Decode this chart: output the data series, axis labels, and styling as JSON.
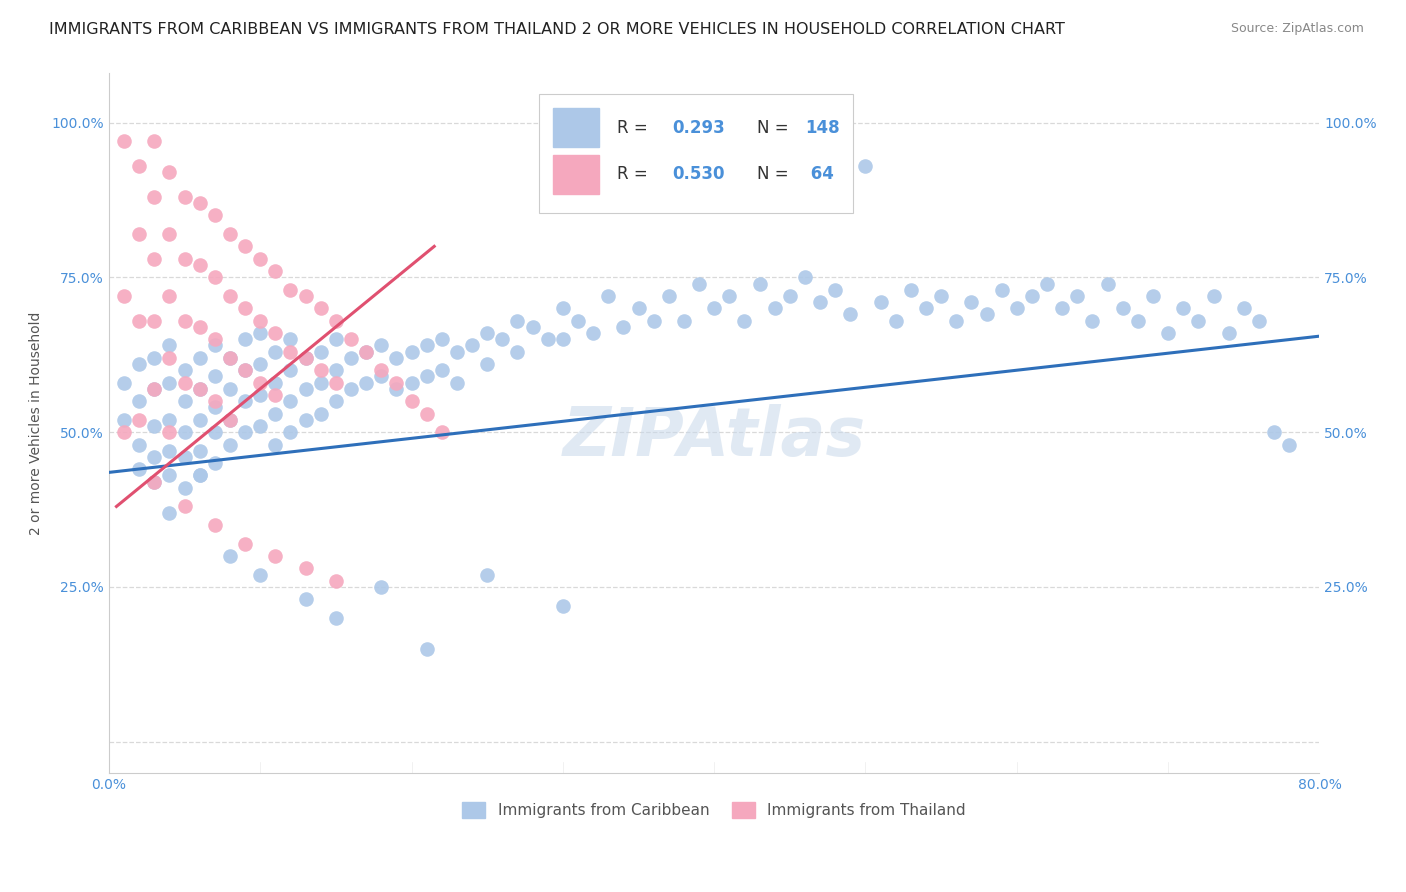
{
  "title": "IMMIGRANTS FROM CARIBBEAN VS IMMIGRANTS FROM THAILAND 2 OR MORE VEHICLES IN HOUSEHOLD CORRELATION CHART",
  "source": "Source: ZipAtlas.com",
  "ylabel": "2 or more Vehicles in Household",
  "xlim": [
    0.0,
    0.8
  ],
  "ylim": [
    -0.05,
    1.08
  ],
  "blue_R": 0.293,
  "blue_N": 148,
  "pink_R": 0.53,
  "pink_N": 64,
  "blue_color": "#adc8e8",
  "blue_line_color": "#2e6fba",
  "pink_color": "#f5a8be",
  "pink_line_color": "#e05070",
  "blue_label": "Immigrants from Caribbean",
  "pink_label": "Immigrants from Thailand",
  "watermark": "ZIPAtlas",
  "title_fontsize": 11.5,
  "axis_label_fontsize": 10,
  "tick_fontsize": 10,
  "blue_scatter_x": [
    0.01,
    0.01,
    0.02,
    0.02,
    0.02,
    0.02,
    0.03,
    0.03,
    0.03,
    0.03,
    0.03,
    0.04,
    0.04,
    0.04,
    0.04,
    0.04,
    0.05,
    0.05,
    0.05,
    0.05,
    0.05,
    0.06,
    0.06,
    0.06,
    0.06,
    0.06,
    0.07,
    0.07,
    0.07,
    0.07,
    0.07,
    0.08,
    0.08,
    0.08,
    0.08,
    0.09,
    0.09,
    0.09,
    0.09,
    0.1,
    0.1,
    0.1,
    0.1,
    0.11,
    0.11,
    0.11,
    0.11,
    0.12,
    0.12,
    0.12,
    0.12,
    0.13,
    0.13,
    0.13,
    0.14,
    0.14,
    0.14,
    0.15,
    0.15,
    0.15,
    0.16,
    0.16,
    0.17,
    0.17,
    0.18,
    0.18,
    0.19,
    0.19,
    0.2,
    0.2,
    0.21,
    0.21,
    0.22,
    0.22,
    0.23,
    0.23,
    0.24,
    0.25,
    0.25,
    0.26,
    0.27,
    0.27,
    0.28,
    0.29,
    0.3,
    0.3,
    0.31,
    0.32,
    0.33,
    0.34,
    0.35,
    0.36,
    0.37,
    0.38,
    0.39,
    0.4,
    0.41,
    0.42,
    0.43,
    0.44,
    0.45,
    0.46,
    0.47,
    0.48,
    0.49,
    0.5,
    0.51,
    0.52,
    0.53,
    0.54,
    0.55,
    0.56,
    0.57,
    0.58,
    0.59,
    0.6,
    0.61,
    0.62,
    0.63,
    0.64,
    0.65,
    0.66,
    0.67,
    0.68,
    0.69,
    0.7,
    0.71,
    0.72,
    0.73,
    0.74,
    0.75,
    0.76,
    0.77,
    0.78,
    0.04,
    0.06,
    0.08,
    0.1,
    0.13,
    0.15,
    0.18,
    0.21,
    0.25,
    0.3
  ],
  "blue_scatter_y": [
    0.58,
    0.52,
    0.61,
    0.55,
    0.48,
    0.44,
    0.62,
    0.57,
    0.51,
    0.46,
    0.42,
    0.64,
    0.58,
    0.52,
    0.47,
    0.43,
    0.6,
    0.55,
    0.5,
    0.46,
    0.41,
    0.62,
    0.57,
    0.52,
    0.47,
    0.43,
    0.64,
    0.59,
    0.54,
    0.5,
    0.45,
    0.62,
    0.57,
    0.52,
    0.48,
    0.65,
    0.6,
    0.55,
    0.5,
    0.66,
    0.61,
    0.56,
    0.51,
    0.63,
    0.58,
    0.53,
    0.48,
    0.65,
    0.6,
    0.55,
    0.5,
    0.62,
    0.57,
    0.52,
    0.63,
    0.58,
    0.53,
    0.65,
    0.6,
    0.55,
    0.62,
    0.57,
    0.63,
    0.58,
    0.64,
    0.59,
    0.62,
    0.57,
    0.63,
    0.58,
    0.64,
    0.59,
    0.65,
    0.6,
    0.63,
    0.58,
    0.64,
    0.66,
    0.61,
    0.65,
    0.68,
    0.63,
    0.67,
    0.65,
    0.7,
    0.65,
    0.68,
    0.66,
    0.72,
    0.67,
    0.7,
    0.68,
    0.72,
    0.68,
    0.74,
    0.7,
    0.72,
    0.68,
    0.74,
    0.7,
    0.72,
    0.75,
    0.71,
    0.73,
    0.69,
    0.93,
    0.71,
    0.68,
    0.73,
    0.7,
    0.72,
    0.68,
    0.71,
    0.69,
    0.73,
    0.7,
    0.72,
    0.74,
    0.7,
    0.72,
    0.68,
    0.74,
    0.7,
    0.68,
    0.72,
    0.66,
    0.7,
    0.68,
    0.72,
    0.66,
    0.7,
    0.68,
    0.5,
    0.48,
    0.37,
    0.43,
    0.3,
    0.27,
    0.23,
    0.2,
    0.25,
    0.15,
    0.27,
    0.22
  ],
  "pink_scatter_x": [
    0.01,
    0.01,
    0.01,
    0.02,
    0.02,
    0.02,
    0.02,
    0.03,
    0.03,
    0.03,
    0.03,
    0.03,
    0.04,
    0.04,
    0.04,
    0.04,
    0.04,
    0.05,
    0.05,
    0.05,
    0.05,
    0.06,
    0.06,
    0.06,
    0.06,
    0.07,
    0.07,
    0.07,
    0.07,
    0.08,
    0.08,
    0.08,
    0.08,
    0.09,
    0.09,
    0.09,
    0.1,
    0.1,
    0.1,
    0.11,
    0.11,
    0.11,
    0.12,
    0.12,
    0.13,
    0.13,
    0.14,
    0.14,
    0.15,
    0.15,
    0.16,
    0.17,
    0.18,
    0.19,
    0.2,
    0.21,
    0.22,
    0.03,
    0.05,
    0.07,
    0.09,
    0.11,
    0.13,
    0.15
  ],
  "pink_scatter_y": [
    0.97,
    0.72,
    0.5,
    0.93,
    0.82,
    0.68,
    0.52,
    0.97,
    0.88,
    0.78,
    0.68,
    0.57,
    0.92,
    0.82,
    0.72,
    0.62,
    0.5,
    0.88,
    0.78,
    0.68,
    0.58,
    0.87,
    0.77,
    0.67,
    0.57,
    0.85,
    0.75,
    0.65,
    0.55,
    0.82,
    0.72,
    0.62,
    0.52,
    0.8,
    0.7,
    0.6,
    0.78,
    0.68,
    0.58,
    0.76,
    0.66,
    0.56,
    0.73,
    0.63,
    0.72,
    0.62,
    0.7,
    0.6,
    0.68,
    0.58,
    0.65,
    0.63,
    0.6,
    0.58,
    0.55,
    0.53,
    0.5,
    0.42,
    0.38,
    0.35,
    0.32,
    0.3,
    0.28,
    0.26
  ],
  "blue_line_x": [
    0.0,
    0.8
  ],
  "blue_line_y": [
    0.435,
    0.655
  ],
  "pink_line_x": [
    0.005,
    0.215
  ],
  "pink_line_y": [
    0.38,
    0.8
  ],
  "ytick_vals": [
    0.0,
    0.25,
    0.5,
    0.75,
    1.0
  ],
  "ytick_labels_left": [
    "",
    "25.0%",
    "50.0%",
    "75.0%",
    "100.0%"
  ],
  "ytick_labels_right": [
    "",
    "25.0%",
    "50.0%",
    "75.0%",
    "100.0%"
  ],
  "xtick_positions": [
    0.0,
    0.1,
    0.2,
    0.3,
    0.4,
    0.5,
    0.6,
    0.7,
    0.8
  ],
  "xtick_labels": [
    "0.0%",
    "",
    "",
    "",
    "",
    "",
    "",
    "",
    "80.0%"
  ],
  "tick_color": "#4a90d9",
  "grid_color": "#d0d0d0",
  "watermark_color": "#c8d8ea",
  "watermark_alpha": 0.55
}
